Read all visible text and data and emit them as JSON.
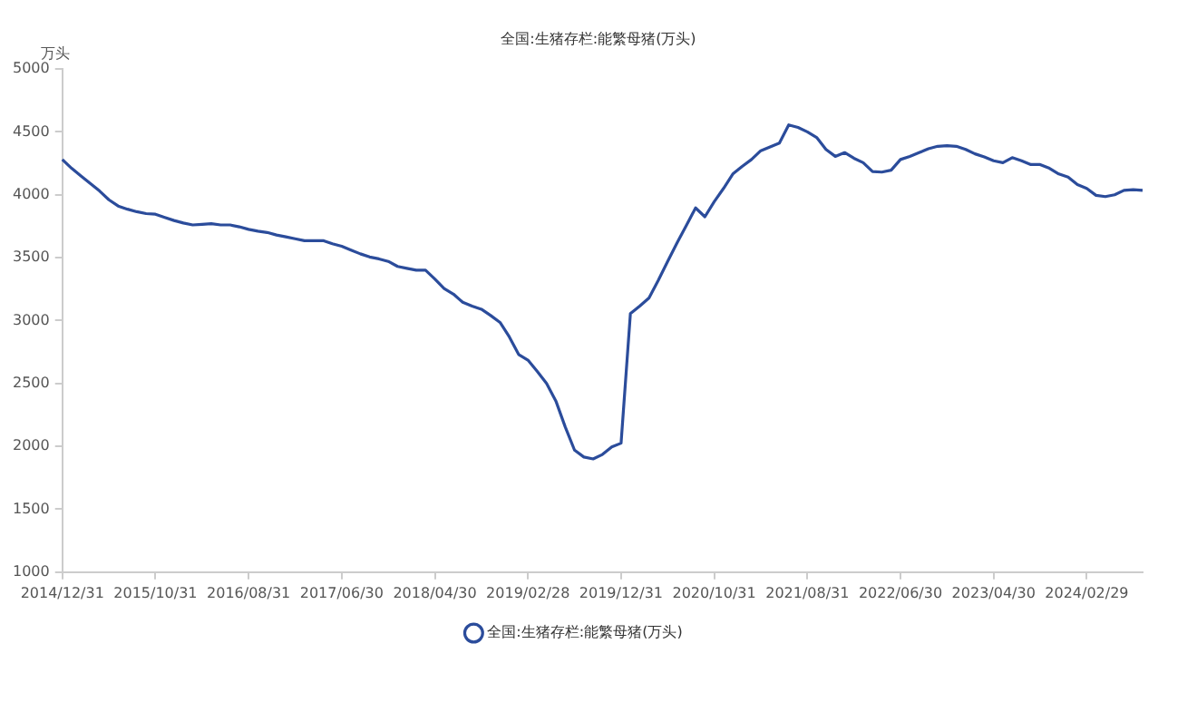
{
  "chart_data": {
    "type": "line",
    "title": "全国:生猪存栏:能繁母猪(万头)",
    "ylabel": "万头",
    "categories": [
      "2014/12/31",
      null,
      null,
      null,
      null,
      null,
      null,
      null,
      null,
      null,
      "2015/10/31",
      null,
      null,
      null,
      null,
      null,
      null,
      null,
      null,
      null,
      "2016/08/31",
      null,
      null,
      null,
      null,
      null,
      null,
      null,
      null,
      null,
      "2017/06/30",
      null,
      null,
      null,
      null,
      null,
      null,
      null,
      null,
      null,
      "2018/04/30",
      null,
      null,
      null,
      null,
      null,
      null,
      null,
      null,
      null,
      "2019/02/28",
      null,
      null,
      null,
      null,
      null,
      null,
      null,
      null,
      null,
      "2019/12/31",
      null,
      null,
      null,
      null,
      null,
      null,
      null,
      null,
      null,
      "2020/10/31",
      null,
      null,
      null,
      null,
      null,
      null,
      null,
      null,
      null,
      "2021/08/31",
      null,
      null,
      null,
      null,
      null,
      null,
      null,
      null,
      null,
      "2022/06/30",
      null,
      null,
      null,
      null,
      null,
      null,
      null,
      null,
      null,
      "2023/04/30",
      null,
      null,
      null,
      null,
      null,
      null,
      null,
      null,
      null,
      "2024/02/29",
      null,
      null,
      null,
      null,
      null,
      null
    ],
    "series": [
      {
        "name": "全国:生猪存栏:能繁母猪(万头)",
        "color": "#2b4c9b",
        "values": [
          4280,
          4210,
          4150,
          4090,
          4030,
          3960,
          3910,
          3885,
          3865,
          3850,
          3845,
          3820,
          3795,
          3775,
          3760,
          3765,
          3770,
          3760,
          3760,
          3745,
          3725,
          3710,
          3700,
          3680,
          3665,
          3650,
          3635,
          3635,
          3635,
          3610,
          3590,
          3560,
          3530,
          3505,
          3490,
          3470,
          3430,
          3415,
          3400,
          3400,
          3330,
          3255,
          3210,
          3145,
          3115,
          3090,
          3040,
          2985,
          2870,
          2730,
          2685,
          2595,
          2500,
          2360,
          2155,
          1970,
          1915,
          1900,
          1935,
          1995,
          2025,
          3055,
          3115,
          3180,
          3320,
          3470,
          3615,
          3755,
          3895,
          3825,
          3945,
          4050,
          4165,
          4225,
          4280,
          4350,
          4380,
          4410,
          4555,
          4535,
          4500,
          4455,
          4360,
          4305,
          4335,
          4290,
          4255,
          4185,
          4180,
          4195,
          4280,
          4305,
          4335,
          4365,
          4385,
          4390,
          4385,
          4360,
          4325,
          4300,
          4270,
          4255,
          4295,
          4270,
          4240,
          4240,
          4210,
          4165,
          4140,
          4080,
          4050,
          3995,
          3985,
          4000,
          4035,
          4040,
          4035
        ]
      }
    ],
    "ylim": [
      1000,
      5000
    ],
    "yticks": [
      1000,
      1500,
      2000,
      2500,
      3000,
      3500,
      4000,
      4500,
      5000
    ],
    "grid": false,
    "legend": "bottom",
    "marker": "none",
    "line_style": "solid"
  }
}
